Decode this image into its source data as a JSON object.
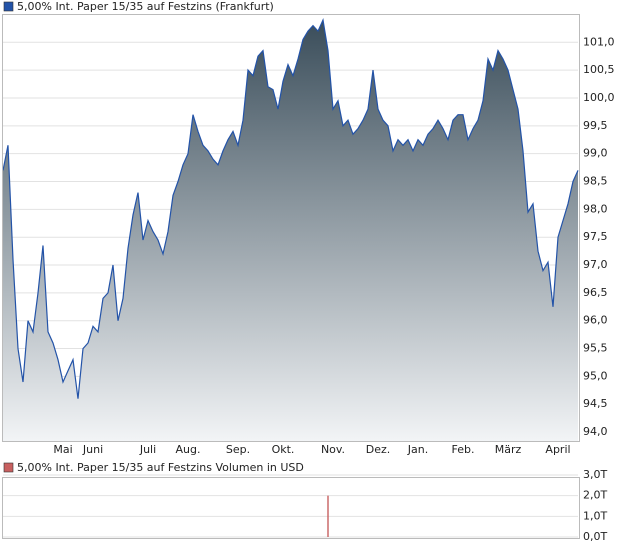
{
  "chart_data": [
    {
      "type": "area",
      "series": [
        {
          "name": "5,00% Int. Paper 15/35 auf Festzins (Frankfurt)",
          "color": "#2353a8",
          "values": [
            98.7,
            99.15,
            97.1,
            95.5,
            94.9,
            96.0,
            95.8,
            96.5,
            97.35,
            95.8,
            95.6,
            95.3,
            94.9,
            95.1,
            95.3,
            94.6,
            95.5,
            95.6,
            95.9,
            95.8,
            96.4,
            96.5,
            97.0,
            96.0,
            96.4,
            97.3,
            97.9,
            98.3,
            97.45,
            97.8,
            97.6,
            97.45,
            97.2,
            97.6,
            98.25,
            98.5,
            98.8,
            99.0,
            99.7,
            99.4,
            99.15,
            99.05,
            98.9,
            98.8,
            99.05,
            99.25,
            99.4,
            99.15,
            99.6,
            100.5,
            100.4,
            100.75,
            100.85,
            100.2,
            100.15,
            99.8,
            100.3,
            100.6,
            100.4,
            100.7,
            101.05,
            101.2,
            101.3,
            101.2,
            101.4,
            100.85,
            99.8,
            99.95,
            99.5,
            99.6,
            99.35,
            99.45,
            99.6,
            99.8,
            100.5,
            99.8,
            99.6,
            99.5,
            99.05,
            99.25,
            99.15,
            99.25,
            99.05,
            99.25,
            99.15,
            99.35,
            99.45,
            99.6,
            99.45,
            99.25,
            99.6,
            99.7,
            99.7,
            99.25,
            99.45,
            99.6,
            99.95,
            100.7,
            100.5,
            100.85,
            100.7,
            100.5,
            100.15,
            99.8,
            99.05,
            97.95,
            98.1,
            97.25,
            96.9,
            97.05,
            96.25,
            97.5,
            97.8,
            98.1,
            98.5,
            98.7
          ]
        }
      ],
      "categories": [
        null,
        null,
        null,
        null,
        null,
        null,
        null,
        null,
        null,
        null,
        null,
        null,
        "Mai",
        null,
        null,
        null,
        null,
        null,
        "Juni",
        null,
        null,
        null,
        null,
        null,
        null,
        null,
        null,
        null,
        null,
        "Juli",
        null,
        null,
        null,
        null,
        null,
        null,
        null,
        "Aug.",
        null,
        null,
        null,
        null,
        null,
        null,
        null,
        null,
        null,
        "Sep.",
        null,
        null,
        null,
        null,
        null,
        null,
        null,
        null,
        "Okt.",
        null,
        null,
        null,
        null,
        null,
        null,
        null,
        null,
        null,
        "Nov.",
        null,
        null,
        null,
        null,
        null,
        null,
        null,
        null,
        "Dez.",
        null,
        null,
        null,
        null,
        null,
        null,
        null,
        "Jan.",
        null,
        null,
        null,
        null,
        null,
        null,
        null,
        null,
        "Feb.",
        null,
        null,
        null,
        null,
        null,
        null,
        null,
        null,
        "März",
        null,
        null,
        null,
        null,
        null,
        null,
        null,
        null,
        null,
        "April",
        null,
        null,
        null,
        null
      ],
      "ylim": [
        93.84,
        101.49
      ],
      "yticks": [
        {
          "value": 94.0,
          "label": "94,0"
        },
        {
          "value": 94.5,
          "label": "94,5"
        },
        {
          "value": 95.0,
          "label": "95,0"
        },
        {
          "value": 95.5,
          "label": "95,5"
        },
        {
          "value": 96.0,
          "label": "96,0"
        },
        {
          "value": 96.5,
          "label": "96,5"
        },
        {
          "value": 97.0,
          "label": "97,0"
        },
        {
          "value": 97.5,
          "label": "97,5"
        },
        {
          "value": 98.0,
          "label": "98,0"
        },
        {
          "value": 98.5,
          "label": "98,5"
        },
        {
          "value": 99.0,
          "label": "99,0"
        },
        {
          "value": 99.5,
          "label": "99,5"
        },
        {
          "value": 100.0,
          "label": "100,0"
        },
        {
          "value": 100.5,
          "label": "100,5"
        },
        {
          "value": 101.0,
          "label": "101,0"
        }
      ],
      "grid": true
    },
    {
      "type": "bar",
      "series": [
        {
          "name": "5,00% Int. Paper 15/35 auf Festzins Volumen in USD",
          "color": "#c86060",
          "values": [
            null,
            null,
            null,
            null,
            null,
            null,
            null,
            null,
            null,
            null,
            null,
            null,
            null,
            null,
            null,
            null,
            null,
            null,
            null,
            null,
            null,
            null,
            null,
            null,
            null,
            null,
            null,
            null,
            null,
            null,
            null,
            null,
            null,
            null,
            null,
            null,
            null,
            null,
            null,
            null,
            null,
            null,
            null,
            null,
            null,
            null,
            null,
            null,
            null,
            null,
            null,
            null,
            null,
            null,
            null,
            null,
            null,
            null,
            null,
            null,
            null,
            null,
            null,
            null,
            null,
            2.0,
            null,
            null,
            null,
            null,
            null,
            null,
            null,
            null,
            null,
            null,
            null,
            null,
            null,
            null,
            null,
            null,
            null,
            null,
            null,
            null,
            null,
            null,
            null,
            null,
            null,
            null,
            null,
            null,
            null,
            null,
            null,
            null,
            null,
            null,
            null,
            null,
            null,
            null,
            null,
            null,
            null,
            null,
            null,
            null,
            null,
            null,
            null,
            null,
            null,
            null
          ]
        }
      ],
      "ylim": [
        0,
        3.0
      ],
      "yticks": [
        {
          "value": 0,
          "label": "0,0T"
        },
        {
          "value": 1.0,
          "label": "1,0T"
        },
        {
          "value": 2.0,
          "label": "2,0T"
        },
        {
          "value": 3.0,
          "label": "3,0T"
        }
      ],
      "grid": true
    }
  ]
}
